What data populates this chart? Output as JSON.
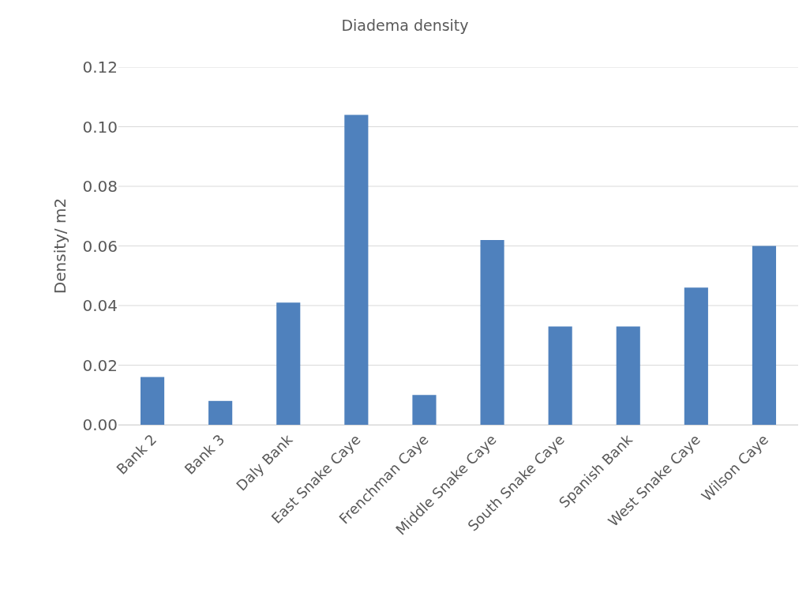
{
  "chart_data": {
    "type": "bar",
    "title": "Diadema density",
    "ylabel": "Density/ m2",
    "categories": [
      "Bank 2",
      "Bank 3",
      "Daly Bank",
      "East Snake Caye",
      "Frenchman Caye",
      "Middle Snake Caye",
      "South Snake Caye",
      "Spanish Bank",
      "West Snake Caye",
      "Wilson Caye"
    ],
    "values": [
      0.016,
      0.008,
      0.041,
      0.104,
      0.01,
      0.062,
      0.033,
      0.033,
      0.046,
      0.06
    ],
    "color": "#4f81bd",
    "ylim": [
      0,
      0.12
    ],
    "yticks": [
      {
        "value": 0,
        "label": "0.00"
      },
      {
        "value": 0.02,
        "label": "0.02"
      },
      {
        "value": 0.04,
        "label": "0.04"
      },
      {
        "value": 0.06,
        "label": "0.06"
      },
      {
        "value": 0.08,
        "label": "0.08"
      },
      {
        "value": 0.1,
        "label": "0.10"
      },
      {
        "value": 0.12,
        "label": "0.12"
      }
    ],
    "grid": "y"
  }
}
